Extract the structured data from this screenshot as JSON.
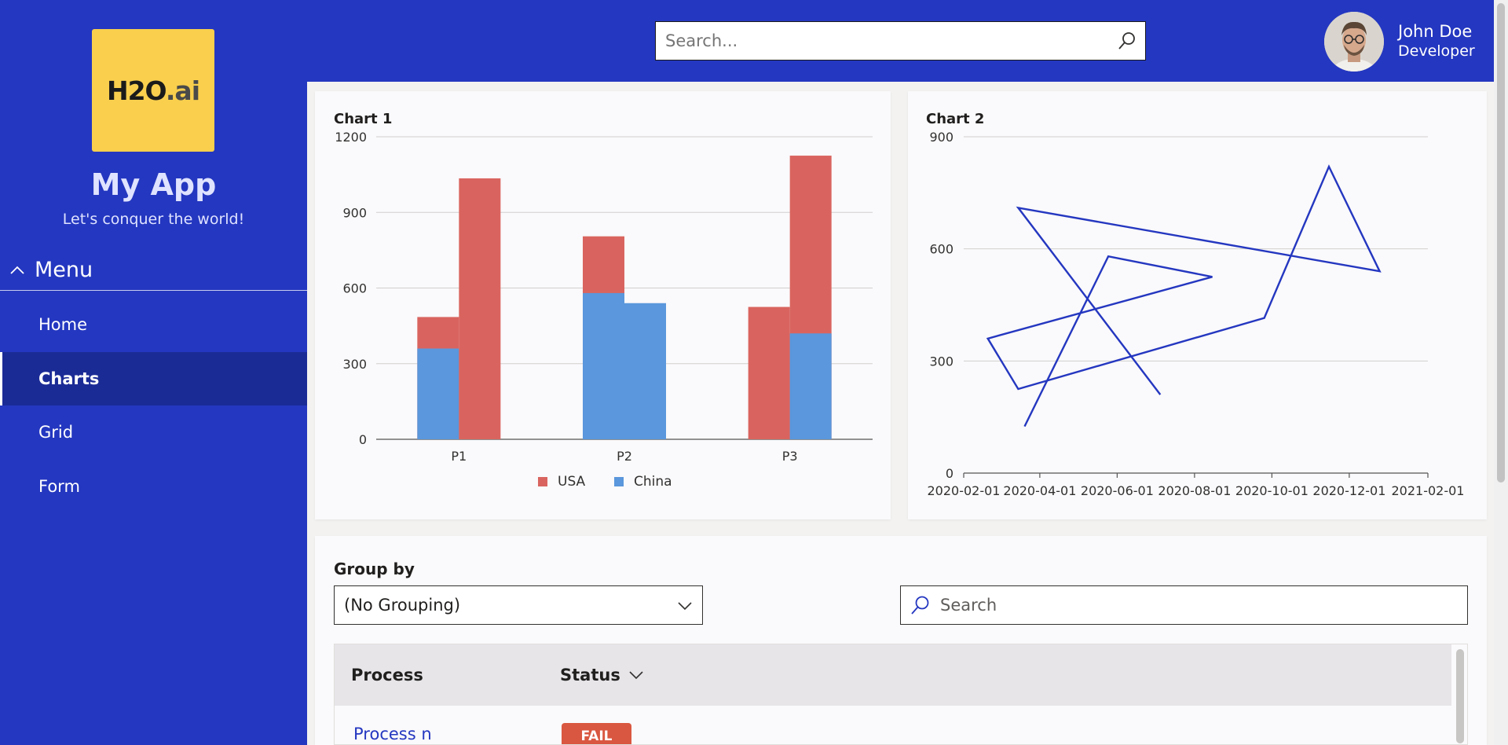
{
  "app": {
    "logo_main": "H2O",
    "logo_suffix": ".ai",
    "title": "My App",
    "subtitle": "Let's conquer the world!"
  },
  "menu": {
    "label": "Menu",
    "items": [
      {
        "label": "Home",
        "active": false
      },
      {
        "label": "Charts",
        "active": true
      },
      {
        "label": "Grid",
        "active": false
      },
      {
        "label": "Form",
        "active": false
      }
    ]
  },
  "header": {
    "search_placeholder": "Search...",
    "user_name": "John Doe",
    "user_role": "Developer"
  },
  "colors": {
    "brand": "#2437c0",
    "nav_active": "#1b2b96",
    "logo_bg": "#f9cf4d",
    "usa": "#d9645f",
    "china": "#5a97dc",
    "line": "#2437c0",
    "fail": "#d95740"
  },
  "chart_data": [
    {
      "type": "bar",
      "title": "Chart 1",
      "categories": [
        "P1",
        "P2",
        "P3"
      ],
      "ylim": [
        0,
        1200
      ],
      "yticks": [
        0,
        300,
        600,
        900,
        1200
      ],
      "legend_position": "bottom",
      "series": [
        {
          "name": "USA",
          "values": [
            [
              360,
              485
            ],
            [
              580,
              805
            ],
            [
              420,
              525
            ]
          ],
          "bars": [
            [
              0,
              485
            ],
            [
              0,
              1035
            ],
            [
              0,
              805
            ],
            [
              0,
              540
            ],
            [
              0,
              525
            ],
            [
              0,
              1125
            ]
          ]
        },
        {
          "name": "China",
          "values": [
            360,
            540,
            420
          ]
        }
      ],
      "bars": [
        {
          "category": "P1",
          "slot": 0,
          "usa_top": 485,
          "china_top": 360
        },
        {
          "category": "P1",
          "slot": 1,
          "usa_top": 1035,
          "china_top": 0
        },
        {
          "category": "P2",
          "slot": 0,
          "usa_top": 805,
          "china_top": 580
        },
        {
          "category": "P2",
          "slot": 1,
          "usa_top": 0,
          "china_top": 540
        },
        {
          "category": "P3",
          "slot": 0,
          "usa_top": 525,
          "china_top": 0
        },
        {
          "category": "P3",
          "slot": 1,
          "usa_top": 1125,
          "china_top": 420
        }
      ]
    },
    {
      "type": "line",
      "title": "Chart 2",
      "ylim": [
        0,
        900
      ],
      "yticks": [
        0,
        300,
        600,
        900
      ],
      "xticks": [
        "2020-02-01",
        "2020-04-01",
        "2020-06-01",
        "2020-08-01",
        "2020-10-01",
        "2020-12-01",
        "2021-02-01"
      ],
      "xlim": [
        "2020-02-01",
        "2021-02-01"
      ],
      "points": [
        {
          "x": "2020-03-20",
          "y": 125
        },
        {
          "x": "2020-05-25",
          "y": 580
        },
        {
          "x": "2020-08-15",
          "y": 525
        },
        {
          "x": "2020-02-20",
          "y": 360
        },
        {
          "x": "2020-03-15",
          "y": 225
        },
        {
          "x": "2020-09-25",
          "y": 415
        },
        {
          "x": "2020-11-15",
          "y": 820
        },
        {
          "x": "2020-12-25",
          "y": 540
        },
        {
          "x": "2020-03-15",
          "y": 710
        },
        {
          "x": "2020-07-05",
          "y": 210
        }
      ]
    }
  ],
  "grid": {
    "group_by_label": "Group by",
    "group_by_value": "(No Grouping)",
    "search_placeholder": "Search",
    "columns": [
      "Process",
      "Status"
    ],
    "rows": [
      {
        "process": "Process n",
        "status": "FAIL"
      }
    ]
  }
}
